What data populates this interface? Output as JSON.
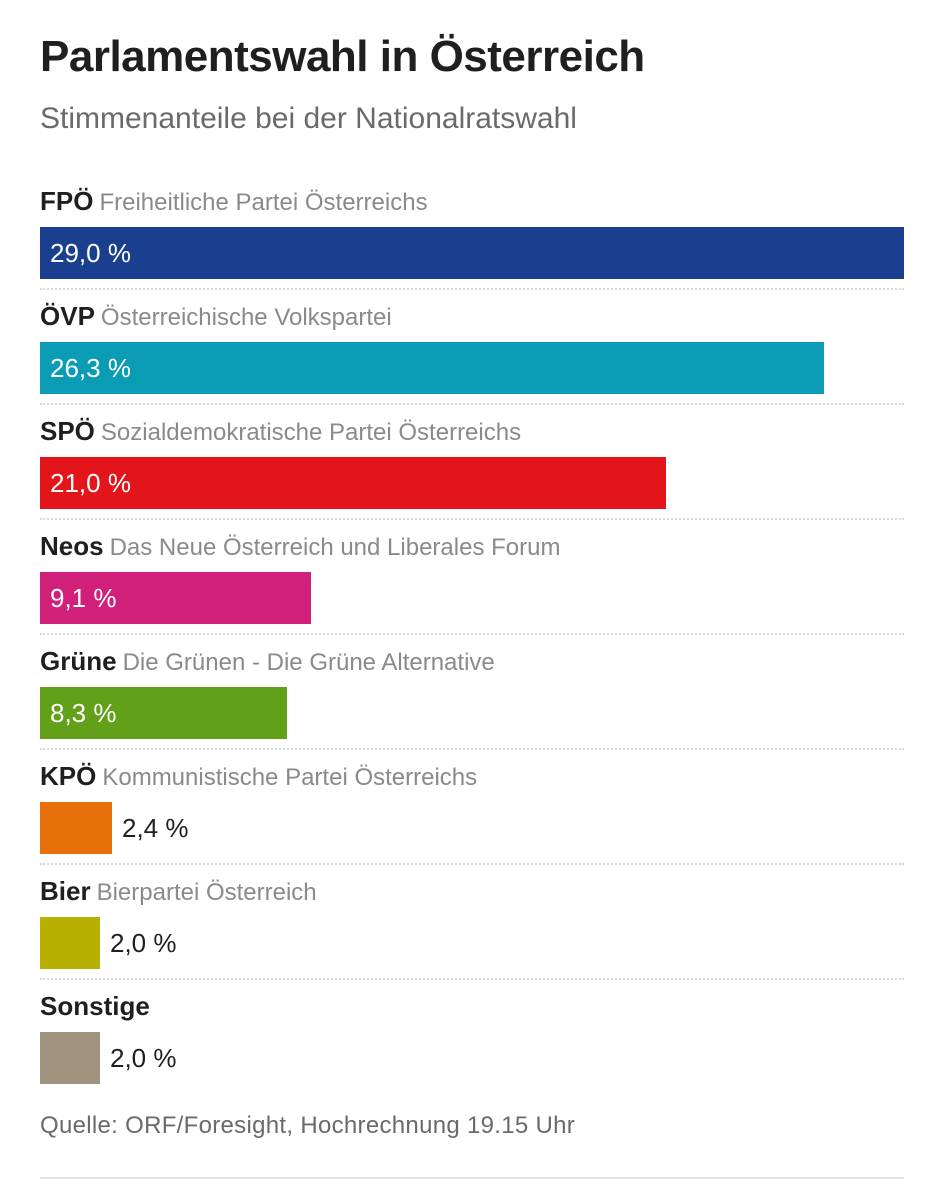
{
  "header": {
    "title": "Parlamentswahl in Österreich",
    "subtitle": "Stimmenanteile bei der Nationalratswahl"
  },
  "chart_data": {
    "type": "bar",
    "orientation": "horizontal",
    "title": "Parlamentswahl in Österreich",
    "subtitle": "Stimmenanteile bei der Nationalratswahl",
    "unit": "%",
    "xlim": [
      0,
      29.0
    ],
    "categories": [
      "FPÖ",
      "ÖVP",
      "SPÖ",
      "Neos",
      "Grüne",
      "KPÖ",
      "Bier",
      "Sonstige"
    ],
    "full_names": [
      "Freiheitliche Partei Österreichs",
      "Österreichische Volkspartei",
      "Sozialdemokratische Partei Österreichs",
      "Das Neue Österreich und Liberales Forum",
      "Die Grünen - Die Grüne Alternative",
      "Kommunistische Partei Österreichs",
      "Bierpartei Österreich",
      ""
    ],
    "values": [
      29.0,
      26.3,
      21.0,
      9.1,
      8.3,
      2.4,
      2.0,
      2.0
    ],
    "value_labels": [
      "29,0 %",
      "26,3 %",
      "21,0 %",
      "9,1 %",
      "8,3 %",
      "2,4 %",
      "2,0 %",
      "2,0 %"
    ],
    "colors": [
      "#1a3f8f",
      "#0a9cb5",
      "#e3151a",
      "#d0207a",
      "#62a01a",
      "#e8700a",
      "#b8b000",
      "#a09480"
    ]
  },
  "footer": {
    "source": "Quelle: ORF/Foresight, Hochrechnung 19.15 Uhr"
  }
}
